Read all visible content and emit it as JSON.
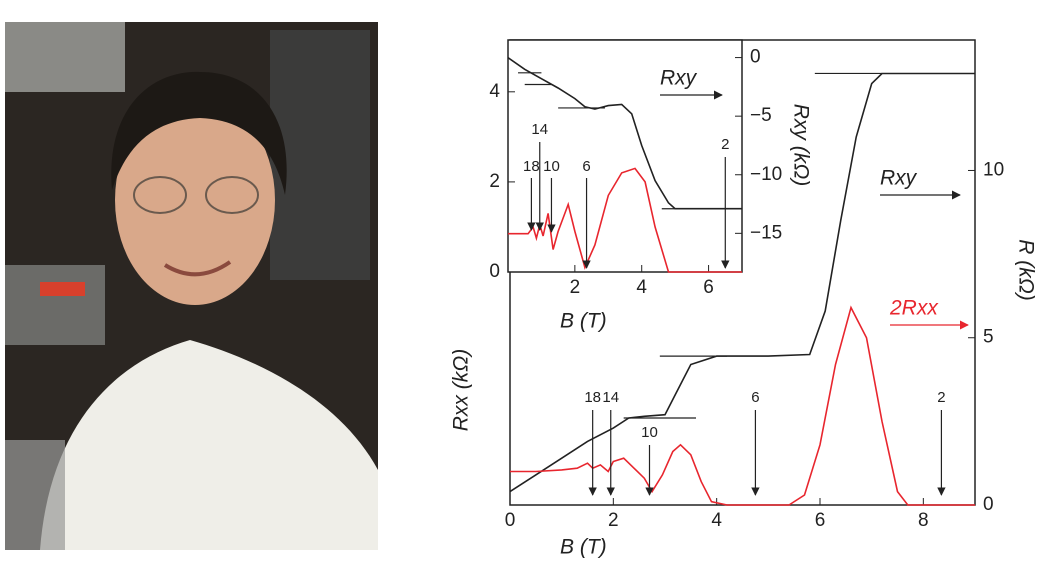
{
  "chart_data": [
    {
      "type": "line",
      "xlabel": "B (T)",
      "ylabel": "Rxx (kΩ)",
      "y2label": "R (kΩ)",
      "xlim": [
        0,
        9
      ],
      "xticks": [
        0,
        2,
        4,
        6,
        8
      ],
      "y2lim": [
        0,
        13.9
      ],
      "y2ticks": [
        0,
        5,
        10
      ],
      "series": [
        {
          "name": "Rxy",
          "color": "#222222",
          "axis": "y2",
          "x": [
            0,
            0.5,
            1,
            1.5,
            2,
            2.3,
            2.6,
            3.0,
            3.2,
            3.5,
            4,
            5,
            5.8,
            6.1,
            6.4,
            6.7,
            7.0,
            7.2,
            8,
            9
          ],
          "values": [
            0.4,
            0.9,
            1.4,
            1.9,
            2.3,
            2.6,
            2.65,
            2.7,
            3.3,
            4.2,
            4.45,
            4.45,
            4.5,
            5.8,
            8.5,
            11.0,
            12.6,
            12.9,
            12.9,
            12.9
          ]
        },
        {
          "name": "2Rxx",
          "color": "#e8262e",
          "axis": "y2",
          "x": [
            0,
            0.5,
            1.0,
            1.3,
            1.5,
            1.6,
            1.75,
            1.9,
            2.0,
            2.2,
            2.4,
            2.6,
            2.75,
            2.95,
            3.15,
            3.3,
            3.5,
            3.7,
            3.9,
            4.2,
            5.4,
            5.7,
            6.0,
            6.3,
            6.6,
            6.9,
            7.2,
            7.5,
            7.7,
            9
          ],
          "values": [
            1.0,
            1.0,
            1.05,
            1.1,
            1.25,
            1.1,
            1.2,
            1.0,
            1.3,
            1.4,
            1.1,
            0.8,
            0.4,
            0.9,
            1.6,
            1.8,
            1.5,
            0.7,
            0.1,
            0,
            0,
            0.3,
            1.8,
            4.2,
            5.9,
            5.0,
            2.5,
            0.4,
            0,
            0
          ]
        }
      ],
      "annotations": [
        {
          "text": "18",
          "x": 1.6
        },
        {
          "text": "14",
          "x": 1.95
        },
        {
          "text": "10",
          "x": 2.7
        },
        {
          "text": "6",
          "x": 4.75
        },
        {
          "text": "2",
          "x": 8.35
        }
      ]
    },
    {
      "type": "line",
      "xlabel": "B (T)",
      "y2label": "Rxy (kΩ)",
      "xlim": [
        0,
        7
      ],
      "xticks": [
        2,
        4,
        6
      ],
      "ylim": [
        0,
        5.15
      ],
      "yticks": [
        0,
        2,
        4
      ],
      "y2lim": [
        -18.3,
        1.5
      ],
      "y2ticks": [
        0,
        {
          "value": -5,
          "label": "−5"
        },
        {
          "value": -10,
          "label": "−10"
        },
        {
          "value": -15,
          "label": "−15"
        }
      ],
      "series": [
        {
          "name": "Rxy",
          "color": "#222222",
          "axis": "y2",
          "x": [
            0,
            0.5,
            1,
            1.5,
            2,
            2.3,
            2.6,
            3.0,
            3.4,
            3.7,
            4.0,
            4.4,
            4.8,
            5.0,
            5.5,
            7
          ],
          "values": [
            0,
            -1,
            -1.8,
            -2.6,
            -3.5,
            -4.2,
            -4.4,
            -4.1,
            -4.0,
            -4.8,
            -7.5,
            -10.5,
            -12.4,
            -12.9,
            -12.9,
            -12.9
          ]
        },
        {
          "color": "#e8262e",
          "x": [
            0,
            0.6,
            0.75,
            0.85,
            0.95,
            1.05,
            1.2,
            1.35,
            1.5,
            1.8,
            2.0,
            2.3,
            2.6,
            3.0,
            3.4,
            3.8,
            4.1,
            4.4,
            4.8,
            7
          ],
          "values": [
            0.85,
            0.85,
            1.0,
            0.75,
            1.05,
            0.8,
            1.3,
            0.5,
            0.9,
            1.5,
            0.9,
            0.1,
            0.6,
            1.7,
            2.2,
            2.3,
            2.0,
            1.0,
            0,
            0
          ]
        }
      ],
      "annotations": [
        {
          "text": "18",
          "x": 0.7
        },
        {
          "text": "14",
          "x": 0.95
        },
        {
          "text": "10",
          "x": 1.3
        },
        {
          "text": "6",
          "x": 2.35
        },
        {
          "text": "2",
          "x": 6.5
        }
      ]
    }
  ]
}
